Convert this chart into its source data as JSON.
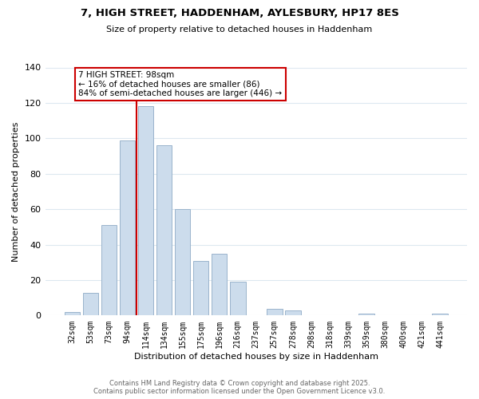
{
  "title_line1": "7, HIGH STREET, HADDENHAM, AYLESBURY, HP17 8ES",
  "title_line2": "Size of property relative to detached houses in Haddenham",
  "xlabel": "Distribution of detached houses by size in Haddenham",
  "ylabel": "Number of detached properties",
  "bar_labels": [
    "32sqm",
    "53sqm",
    "73sqm",
    "94sqm",
    "114sqm",
    "134sqm",
    "155sqm",
    "175sqm",
    "196sqm",
    "216sqm",
    "237sqm",
    "257sqm",
    "278sqm",
    "298sqm",
    "318sqm",
    "339sqm",
    "359sqm",
    "380sqm",
    "400sqm",
    "421sqm",
    "441sqm"
  ],
  "bar_values": [
    2,
    13,
    51,
    99,
    118,
    96,
    60,
    31,
    35,
    19,
    0,
    4,
    3,
    0,
    0,
    0,
    1,
    0,
    0,
    0,
    1
  ],
  "bar_color": "#ccdcec",
  "bar_edge_color": "#9ab4cc",
  "vline_x": 3.5,
  "vline_color": "#cc0000",
  "annotation_title": "7 HIGH STREET: 98sqm",
  "annotation_line1": "← 16% of detached houses are smaller (86)",
  "annotation_line2": "84% of semi-detached houses are larger (446) →",
  "annotation_box_color": "#ffffff",
  "annotation_box_edge": "#cc0000",
  "ylim": [
    0,
    140
  ],
  "yticks": [
    0,
    20,
    40,
    60,
    80,
    100,
    120,
    140
  ],
  "footer_line1": "Contains HM Land Registry data © Crown copyright and database right 2025.",
  "footer_line2": "Contains public sector information licensed under the Open Government Licence v3.0.",
  "background_color": "#ffffff",
  "grid_color": "#dde8f0"
}
